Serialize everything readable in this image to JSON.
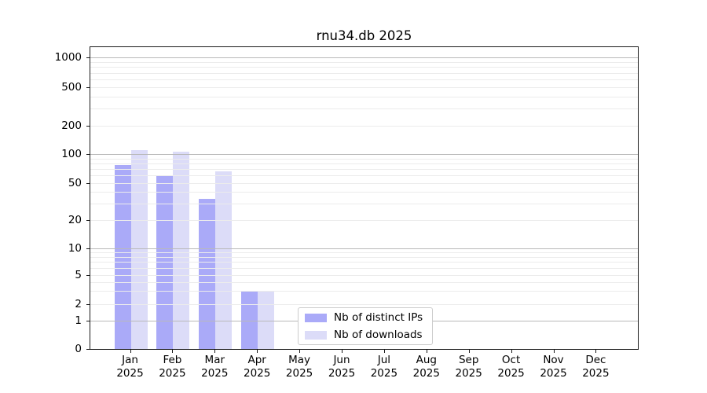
{
  "title": "rnu34.db 2025",
  "colors": {
    "distinct_ips_bar": "#aaaaf8",
    "downloads_bar": "#dcdcf8",
    "grid_major": "#b9b9b9",
    "grid_minor": "#ececec",
    "axis": "#1a1a1a",
    "legend_border": "#cccccc"
  },
  "chart_data": {
    "type": "bar",
    "title": "rnu34.db 2025",
    "categories": [
      "Jan 2025",
      "Feb 2025",
      "Mar 2025",
      "Apr 2025",
      "May 2025",
      "Jun 2025",
      "Jul 2025",
      "Aug 2025",
      "Sep 2025",
      "Oct 2025",
      "Nov 2025",
      "Dec 2025"
    ],
    "series": [
      {
        "name": "Nb of distinct IPs",
        "color": "#aaaaf8",
        "values": [
          77,
          60,
          34,
          3,
          0,
          0,
          0,
          0,
          0,
          0,
          0,
          0
        ]
      },
      {
        "name": "Nb of downloads",
        "color": "#dcdcf8",
        "values": [
          110,
          105,
          66,
          3,
          0,
          0,
          0,
          0,
          0,
          0,
          0,
          0
        ]
      }
    ],
    "xlabel": "",
    "ylabel": "",
    "yscale": "symlog",
    "yticks": [
      0,
      1,
      2,
      5,
      10,
      20,
      50,
      100,
      200,
      500,
      1000
    ],
    "ylim": [
      0,
      1300
    ],
    "grid": "horizontal major and minor gridlines, drawn over bars",
    "legend_position": "lower center inside plot"
  }
}
